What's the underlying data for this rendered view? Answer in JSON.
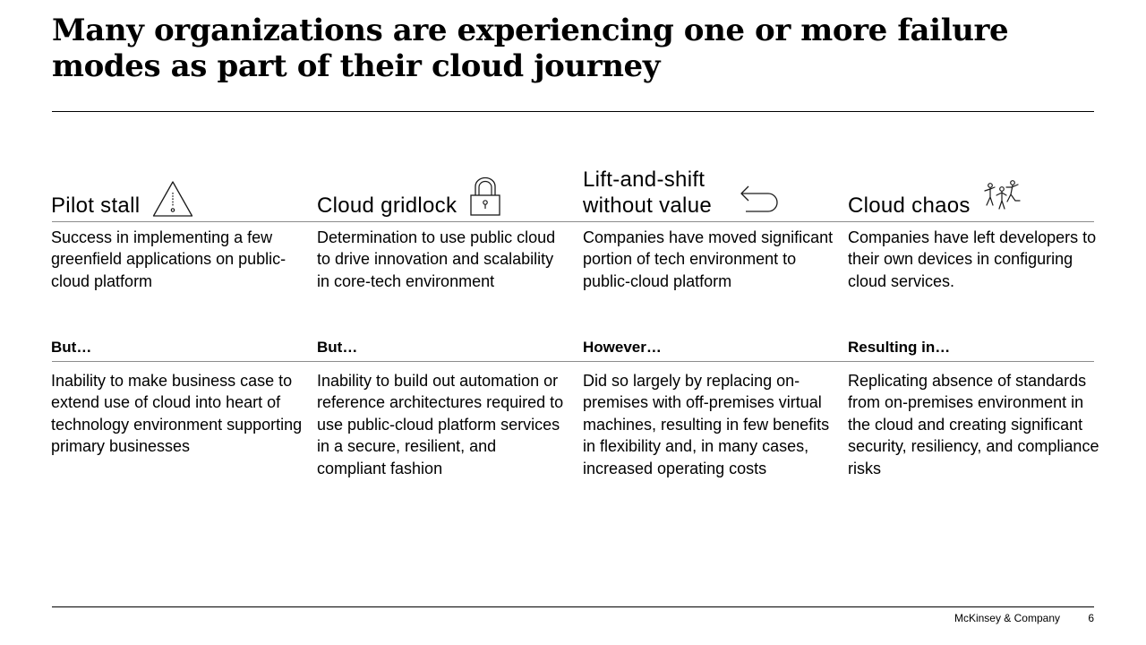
{
  "title": "Many organizations are experiencing one or more failure modes as part of their cloud journey",
  "columns": [
    {
      "label": "Pilot stall",
      "icon": "warning-triangle-icon",
      "lead": "Success in implementing a few greenfield applications on public-cloud platform",
      "connector": "But…",
      "detail": "Inability to make business case to extend use of cloud into heart of technology environment supporting primary businesses"
    },
    {
      "label": "Cloud gridlock",
      "icon": "padlock-icon",
      "lead": "Determination to use public cloud to drive innovation and scalability in core-tech environment",
      "connector": "But…",
      "detail": "Inability to build out automation or reference architectures required to use public-cloud platform services in a secure, resilient, and compliant fashion"
    },
    {
      "label": "Lift-and-shift without value",
      "icon": "return-arrow-icon",
      "lead": "Companies have moved significant portion of tech environment to public-cloud platform",
      "connector": "However…",
      "detail": "Did so largely by replacing on-premises with off-premises virtual machines, resulting in few benefits in flexibility and, in many cases, increased operating costs"
    },
    {
      "label": "Cloud chaos",
      "icon": "scattered-people-icon",
      "lead": "Companies have left developers to their own devices in configuring cloud services.",
      "connector": "Resulting in…",
      "detail": "Replicating absence of standards from on-premises environment in the cloud and creating significant security, resiliency, and compliance risks"
    }
  ],
  "footer": {
    "brand": "McKinsey & Company",
    "page": "6"
  }
}
